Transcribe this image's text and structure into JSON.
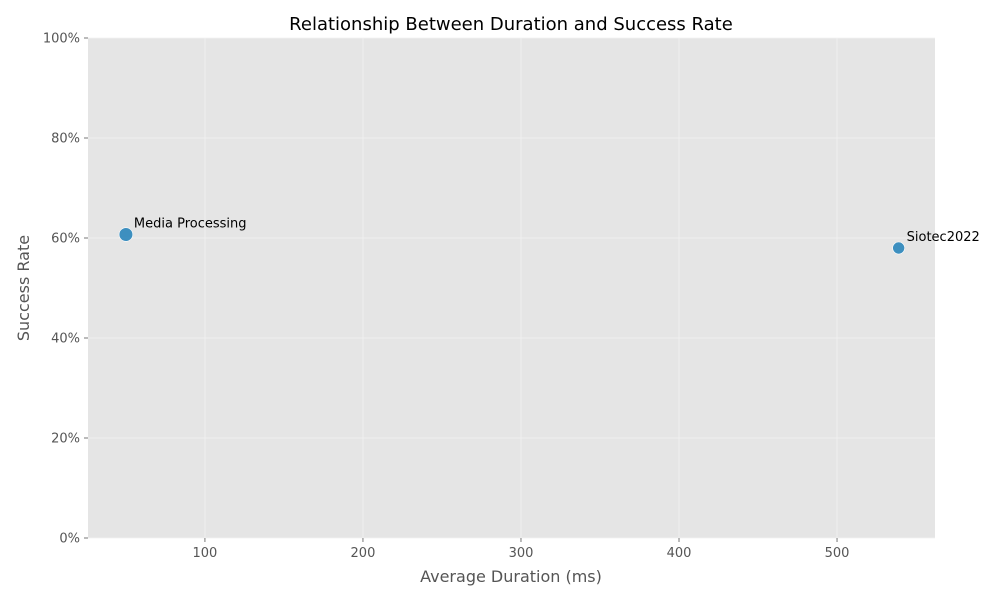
{
  "chart_data": {
    "type": "scatter",
    "title": "Relationship Between Duration and Success Rate",
    "xlabel": "Average Duration (ms)",
    "ylabel": "Success Rate",
    "xlim": [
      26,
      562
    ],
    "ylim": [
      0,
      1
    ],
    "x_ticks": [
      100,
      200,
      300,
      400,
      500
    ],
    "x_tick_labels": [
      "100",
      "200",
      "300",
      "400",
      "500"
    ],
    "y_ticks": [
      0,
      0.2,
      0.4,
      0.6,
      0.8,
      1.0
    ],
    "y_tick_labels": [
      "0%",
      "20%",
      "40%",
      "60%",
      "80%",
      "100%"
    ],
    "grid": true,
    "background": "#e5e5e5",
    "marker_color": "#348abd",
    "points": [
      {
        "label": "Media Processing",
        "x": 50,
        "y": 0.607,
        "size": 1.3
      },
      {
        "label": "Siotec2022",
        "x": 539,
        "y": 0.58,
        "size": 1.0
      }
    ]
  }
}
